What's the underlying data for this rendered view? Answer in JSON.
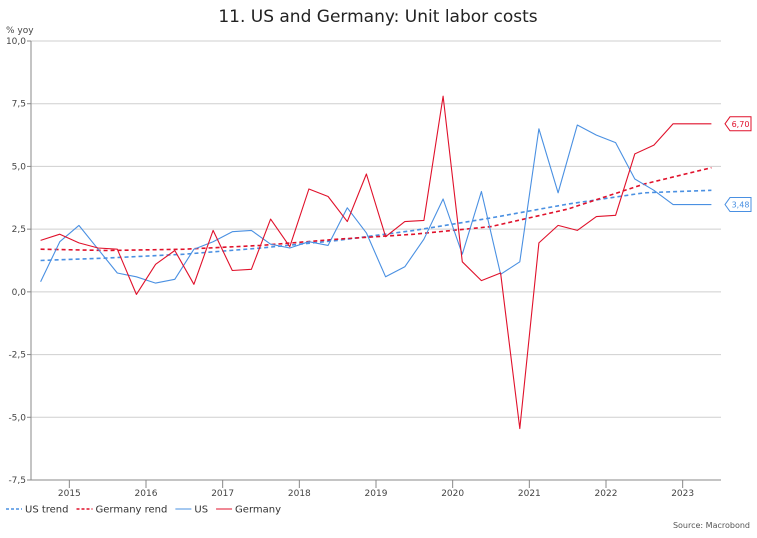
{
  "chart_data": {
    "type": "line",
    "title": "11. US and Germany: Unit labor costs",
    "ylabel": "% yoy",
    "ylim": [
      -7.5,
      10.0
    ],
    "yticks": [
      "10,0",
      "7,5",
      "5,0",
      "2,5",
      "0,0",
      "-2,5",
      "-5,0",
      "-7,5"
    ],
    "ytick_values": [
      10.0,
      7.5,
      5.0,
      2.5,
      0.0,
      -2.5,
      -5.0,
      -7.5
    ],
    "x_period_start": 2014.5,
    "x_period_end": 2023.5,
    "xticks": [
      "2015",
      "2016",
      "2017",
      "2018",
      "2019",
      "2020",
      "2021",
      "2022",
      "2023"
    ],
    "grid": "horizontal",
    "legend_position": "bottom-left",
    "series": [
      {
        "name": "US trend",
        "style": "dashed",
        "color": "#4a90e2",
        "x": [
          2014.625,
          2015.5,
          2016.5,
          2017.5,
          2018.5,
          2019.5,
          2020.5,
          2021.5,
          2022.5,
          2023.375
        ],
        "values": [
          1.25,
          1.35,
          1.5,
          1.75,
          2.05,
          2.45,
          2.95,
          3.5,
          3.95,
          4.05
        ]
      },
      {
        "name": "Germany rend",
        "style": "dashed",
        "color": "#e0112b",
        "x": [
          2014.625,
          2015.5,
          2016.5,
          2017.5,
          2018.5,
          2019.5,
          2020.5,
          2021.5,
          2022.5,
          2023.375
        ],
        "values": [
          1.7,
          1.65,
          1.7,
          1.85,
          2.1,
          2.3,
          2.6,
          3.3,
          4.3,
          4.95
        ]
      },
      {
        "name": "US",
        "style": "solid",
        "color": "#4a90e2",
        "x": [
          2014.625,
          2014.875,
          2015.125,
          2015.375,
          2015.625,
          2015.875,
          2016.125,
          2016.375,
          2016.625,
          2016.875,
          2017.125,
          2017.375,
          2017.625,
          2017.875,
          2018.125,
          2018.375,
          2018.625,
          2018.875,
          2019.125,
          2019.375,
          2019.625,
          2019.875,
          2020.125,
          2020.375,
          2020.625,
          2020.875,
          2021.125,
          2021.375,
          2021.625,
          2021.875,
          2022.125,
          2022.375,
          2022.625,
          2022.875,
          2023.125,
          2023.375
        ],
        "values": [
          0.4,
          2.0,
          2.65,
          1.7,
          0.75,
          0.6,
          0.35,
          0.5,
          1.7,
          2.0,
          2.4,
          2.45,
          1.9,
          1.75,
          2.0,
          1.85,
          3.35,
          2.35,
          0.6,
          1.0,
          2.1,
          3.7,
          1.5,
          4.0,
          0.7,
          1.2,
          6.5,
          3.95,
          6.65,
          6.25,
          5.95,
          4.5,
          4.05,
          3.48,
          3.48,
          3.48
        ]
      },
      {
        "name": "Germany",
        "style": "solid",
        "color": "#e0112b",
        "x": [
          2014.625,
          2014.875,
          2015.125,
          2015.375,
          2015.625,
          2015.875,
          2016.125,
          2016.375,
          2016.625,
          2016.875,
          2017.125,
          2017.375,
          2017.625,
          2017.875,
          2018.125,
          2018.375,
          2018.625,
          2018.875,
          2019.125,
          2019.375,
          2019.625,
          2019.875,
          2020.125,
          2020.375,
          2020.625,
          2020.875,
          2021.125,
          2021.375,
          2021.625,
          2021.875,
          2022.125,
          2022.375,
          2022.625,
          2022.875,
          2023.125,
          2023.375
        ],
        "values": [
          2.05,
          2.3,
          1.95,
          1.75,
          1.7,
          -0.1,
          1.1,
          1.65,
          0.3,
          2.45,
          0.85,
          0.9,
          2.9,
          1.8,
          4.1,
          3.8,
          2.8,
          4.7,
          2.2,
          2.8,
          2.85,
          7.8,
          1.2,
          0.45,
          0.75,
          -5.45,
          1.95,
          2.65,
          2.45,
          3.0,
          3.05,
          5.5,
          5.85,
          6.7,
          6.7,
          6.7
        ]
      }
    ],
    "callouts": [
      {
        "series": "Germany",
        "label": "6,70",
        "value": 6.7,
        "color": "#e0112b"
      },
      {
        "series": "US",
        "label": "3,48",
        "value": 3.48,
        "color": "#4a90e2"
      }
    ],
    "source": "Source: Macrobond"
  }
}
